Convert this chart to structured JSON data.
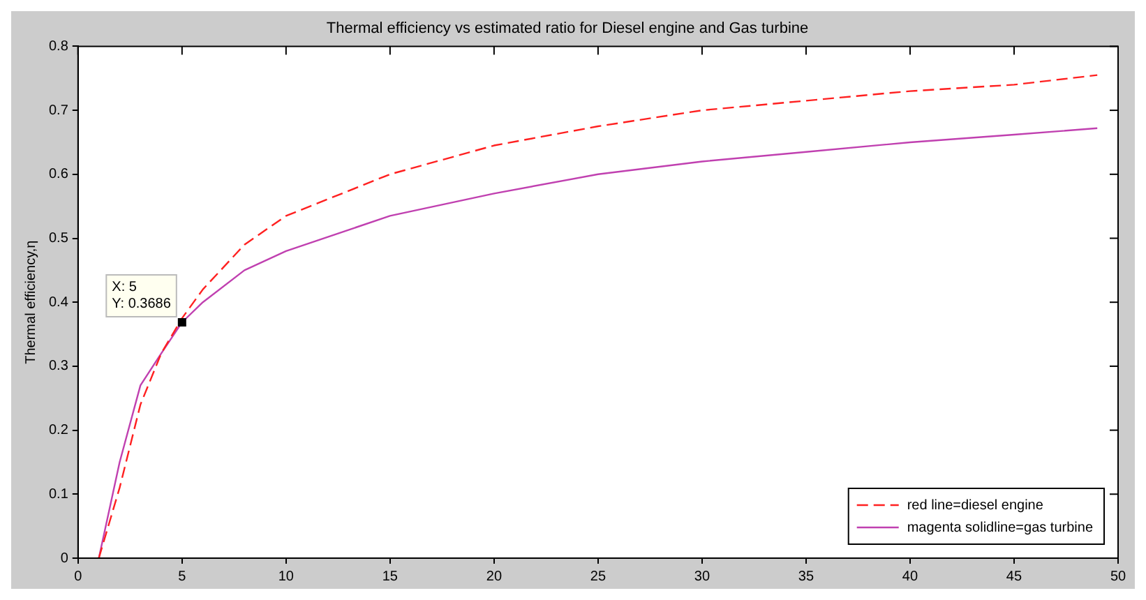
{
  "chart_data": {
    "type": "line",
    "title": "Thermal efficiency vs estimated ratio for Diesel engine and Gas turbine",
    "ylabel": "Thermal efficiency,η",
    "x": [
      1,
      2,
      3,
      4,
      5,
      6,
      8,
      10,
      15,
      20,
      25,
      30,
      35,
      40,
      45,
      49
    ],
    "series": [
      {
        "name": "red line=diesel engine",
        "color": "#ff2020",
        "line_style": "dashed",
        "values": [
          0,
          0.11,
          0.24,
          0.32,
          0.375,
          0.42,
          0.49,
          0.535,
          0.6,
          0.645,
          0.675,
          0.7,
          0.715,
          0.73,
          0.74,
          0.755
        ]
      },
      {
        "name": "magenta solidline=gas turbine",
        "color": "#c040b0",
        "line_style": "solid",
        "values": [
          0,
          0.15,
          0.27,
          0.32,
          0.3686,
          0.4,
          0.45,
          0.48,
          0.535,
          0.57,
          0.6,
          0.62,
          0.635,
          0.65,
          0.662,
          0.672
        ]
      }
    ],
    "annotations": [
      {
        "text": "X: 5\nY: 0.3686",
        "x": 5,
        "y": 0.3686
      }
    ],
    "xlim": [
      0,
      50
    ],
    "xticks": [
      0,
      5,
      10,
      15,
      20,
      25,
      30,
      35,
      40,
      45,
      50
    ],
    "ylim": [
      0,
      0.8
    ],
    "yticks": [
      0,
      0.1,
      0.2,
      0.3,
      0.4,
      0.5,
      0.6,
      0.7,
      0.8
    ],
    "grid": false,
    "legend": "bottom right",
    "marker": "none"
  }
}
